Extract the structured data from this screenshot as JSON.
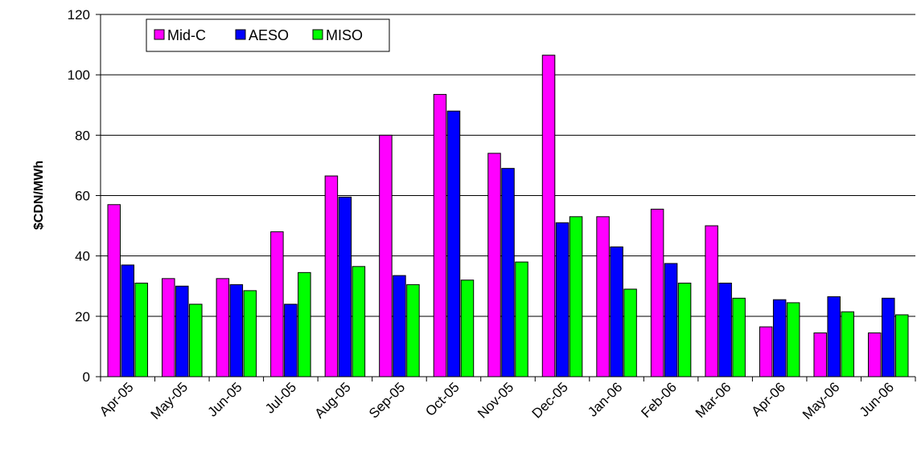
{
  "chart_data": {
    "type": "bar",
    "title": "",
    "xlabel": "",
    "ylabel": "$CDN/MWh",
    "ylim": [
      0,
      120
    ],
    "yticks": [
      0,
      20,
      40,
      60,
      80,
      100,
      120
    ],
    "grid": true,
    "legend_position": "top-left",
    "categories": [
      "Apr-05",
      "May-05",
      "Jun-05",
      "Jul-05",
      "Aug-05",
      "Sep-05",
      "Oct-05",
      "Nov-05",
      "Dec-05",
      "Jan-06",
      "Feb-06",
      "Mar-06",
      "Apr-06",
      "May-06",
      "Jun-06"
    ],
    "series": [
      {
        "name": "Mid-C",
        "color": "#ff00ff",
        "values": [
          57,
          32.5,
          32.5,
          48,
          66.5,
          80,
          93.5,
          74,
          106.5,
          53,
          55.5,
          50,
          16.5,
          14.5,
          14.5
        ]
      },
      {
        "name": "AESO",
        "color": "#0000ff",
        "values": [
          37,
          30,
          30.5,
          24,
          59.5,
          33.5,
          88,
          69,
          51,
          43,
          37.5,
          31,
          25.5,
          26.5,
          26
        ]
      },
      {
        "name": "MISO",
        "color": "#00ff00",
        "values": [
          31,
          24,
          28.5,
          34.5,
          36.5,
          30.5,
          32,
          38,
          53,
          29,
          31,
          26,
          24.5,
          21.5,
          20.5
        ]
      }
    ]
  }
}
